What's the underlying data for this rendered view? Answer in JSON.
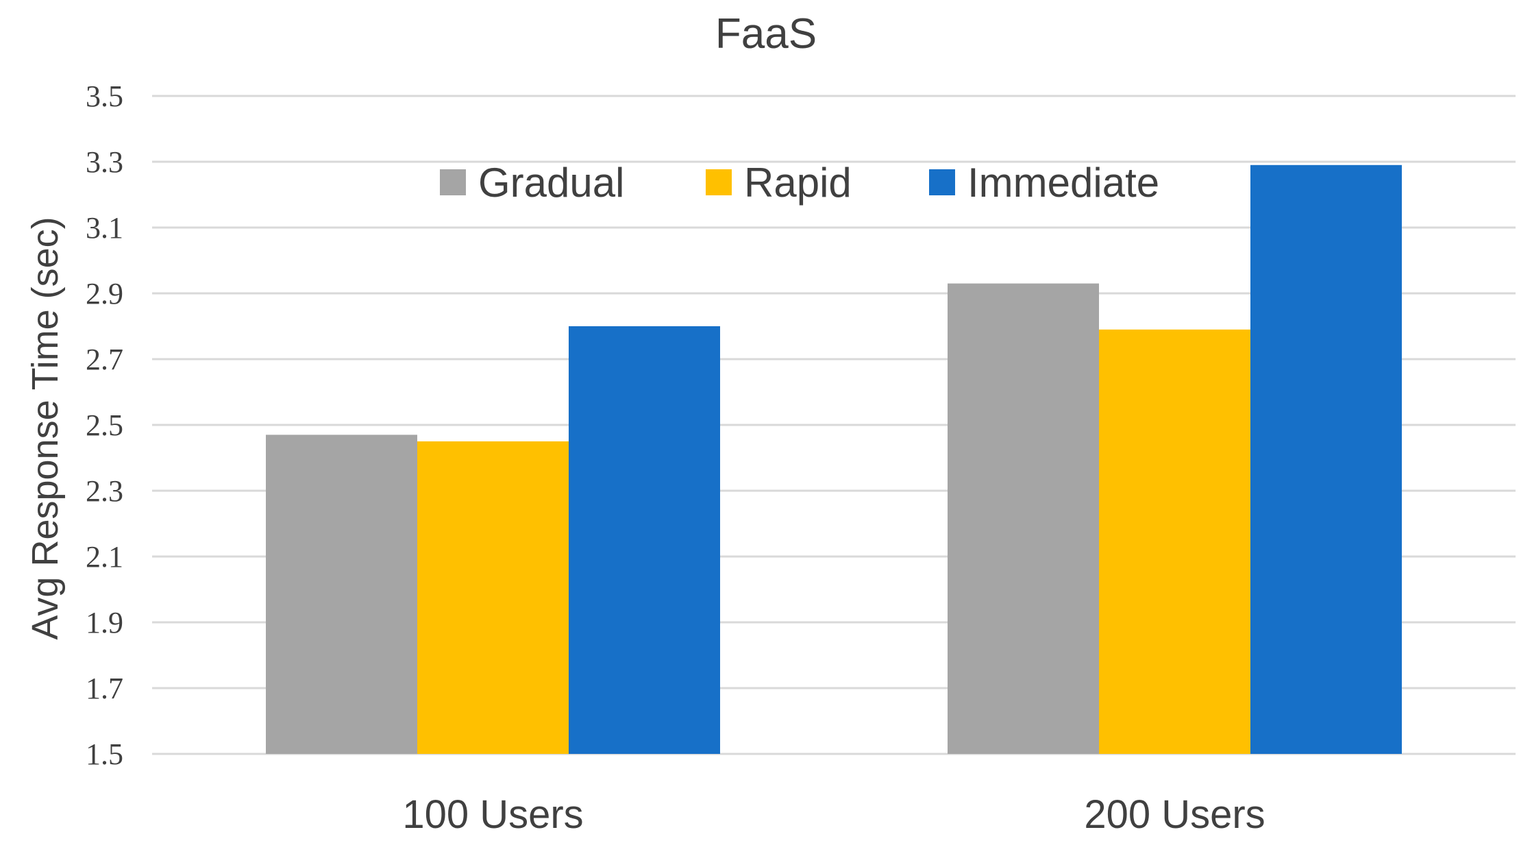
{
  "chart_data": {
    "type": "bar",
    "title": "FaaS",
    "xlabel": "",
    "ylabel": "Avg Response Time (sec)",
    "categories": [
      "100 Users",
      "200 Users"
    ],
    "series": [
      {
        "name": "Gradual",
        "values": [
          2.47,
          2.93
        ],
        "color": "#a5a5a5"
      },
      {
        "name": "Rapid",
        "values": [
          2.45,
          2.79
        ],
        "color": "#ffc000"
      },
      {
        "name": "Immediate",
        "values": [
          2.8,
          3.29
        ],
        "color": "#1770c8"
      }
    ],
    "ylim": [
      1.5,
      3.5
    ],
    "yticks": [
      "1.5",
      "1.7",
      "1.9",
      "2.1",
      "2.3",
      "2.5",
      "2.7",
      "2.9",
      "3.1",
      "3.3",
      "3.5"
    ],
    "grid": true,
    "legend": "top-center"
  }
}
